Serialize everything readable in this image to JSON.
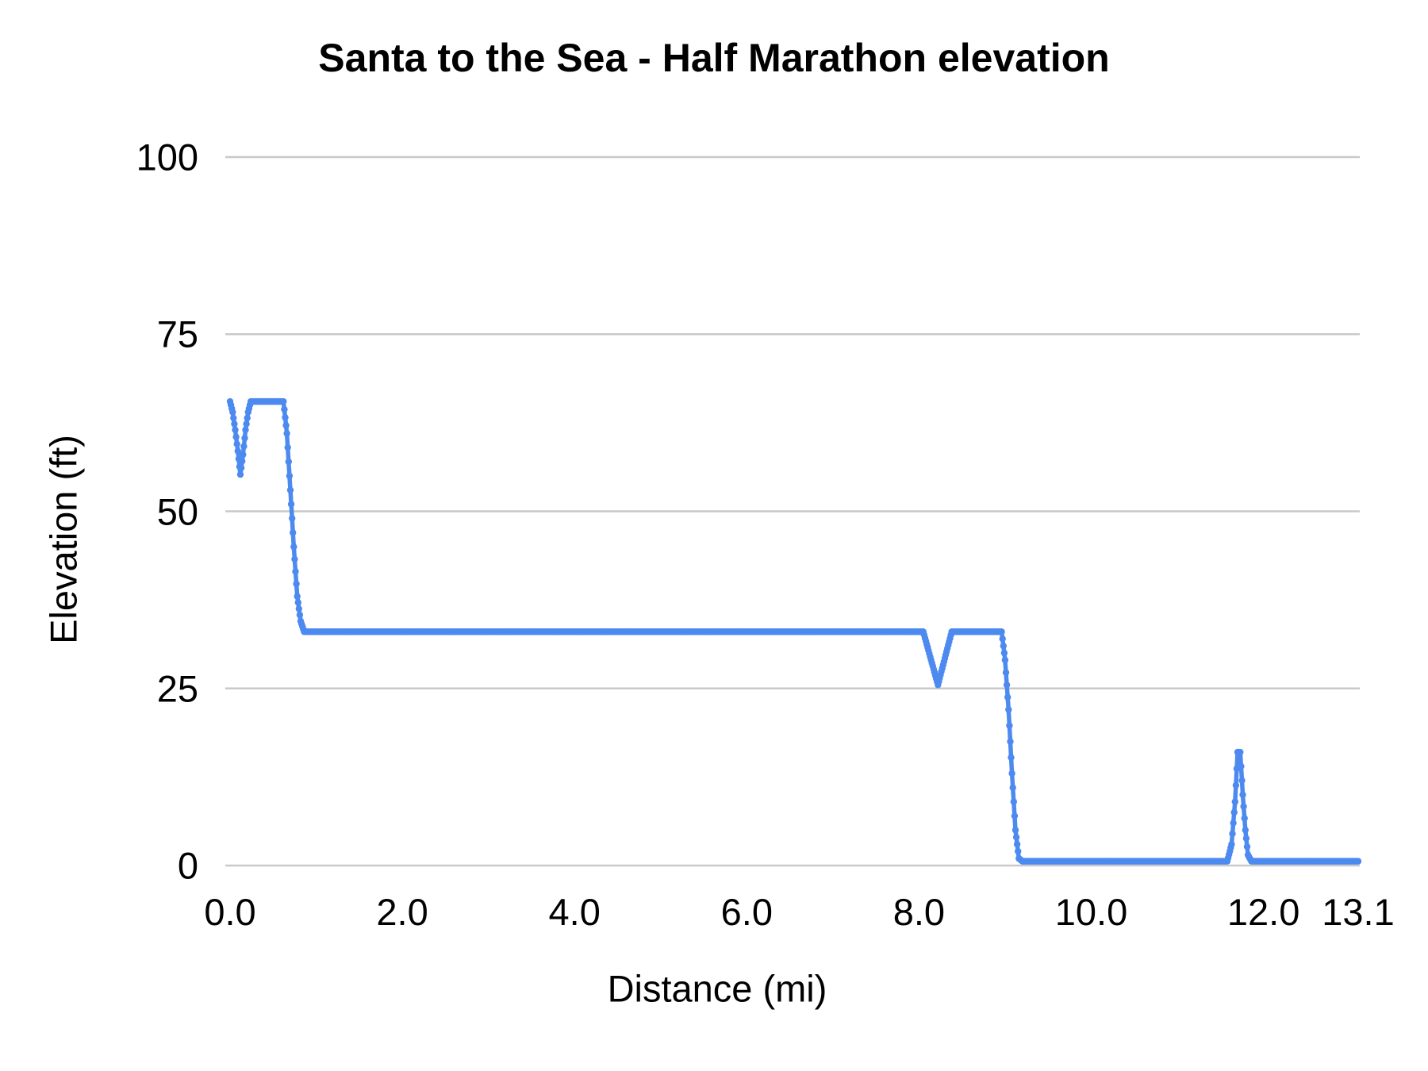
{
  "chart_data": {
    "type": "line",
    "title": "Santa to the Sea - Half Marathon elevation",
    "xlabel": "Distance (mi)",
    "ylabel": "Elevation (ft)",
    "xlim": [
      0,
      13.1
    ],
    "ylim": [
      0,
      100
    ],
    "x_ticks": [
      {
        "label": "0.0",
        "value": 0
      },
      {
        "label": "2.0",
        "value": 2
      },
      {
        "label": "4.0",
        "value": 4
      },
      {
        "label": "6.0",
        "value": 6
      },
      {
        "label": "8.0",
        "value": 8
      },
      {
        "label": "10.0",
        "value": 10
      },
      {
        "label": "12.0",
        "value": 12
      },
      {
        "label": "13.1",
        "value": 13.1
      }
    ],
    "y_ticks": [
      {
        "label": "0",
        "value": 0
      },
      {
        "label": "25",
        "value": 25
      },
      {
        "label": "50",
        "value": 50
      },
      {
        "label": "75",
        "value": 75
      },
      {
        "label": "100",
        "value": 100
      }
    ],
    "grid": true,
    "legend": "none",
    "series": [
      {
        "name": "Elevation (ft)",
        "color": "#4d8af0",
        "marker": "circle",
        "keypoints": [
          [
            0.0,
            65.5
          ],
          [
            0.03,
            64.0
          ],
          [
            0.06,
            61.5
          ],
          [
            0.09,
            58.5
          ],
          [
            0.12,
            55.2
          ],
          [
            0.15,
            58.0
          ],
          [
            0.18,
            61.5
          ],
          [
            0.21,
            64.0
          ],
          [
            0.24,
            65.5
          ],
          [
            0.62,
            65.5
          ],
          [
            0.66,
            61.0
          ],
          [
            0.7,
            53.0
          ],
          [
            0.74,
            45.0
          ],
          [
            0.78,
            38.0
          ],
          [
            0.82,
            34.5
          ],
          [
            0.86,
            33.0
          ],
          [
            8.05,
            33.0
          ],
          [
            8.22,
            25.5
          ],
          [
            8.38,
            33.0
          ],
          [
            8.96,
            33.0
          ],
          [
            9.0,
            29.0
          ],
          [
            9.04,
            22.0
          ],
          [
            9.08,
            13.0
          ],
          [
            9.12,
            5.0
          ],
          [
            9.16,
            1.0
          ],
          [
            9.2,
            0.6
          ],
          [
            11.58,
            0.6
          ],
          [
            11.63,
            3.0
          ],
          [
            11.67,
            9.0
          ],
          [
            11.7,
            16.0
          ],
          [
            11.73,
            16.0
          ],
          [
            11.76,
            10.0
          ],
          [
            11.79,
            5.0
          ],
          [
            11.82,
            1.5
          ],
          [
            11.86,
            0.6
          ],
          [
            13.1,
            0.6
          ]
        ],
        "sample_step_mi": 0.01
      }
    ],
    "colors": {
      "series_blue": "#4d8af0",
      "gridline_gray": "#c9c9c9",
      "text_black": "#000000",
      "background": "#ffffff"
    }
  }
}
